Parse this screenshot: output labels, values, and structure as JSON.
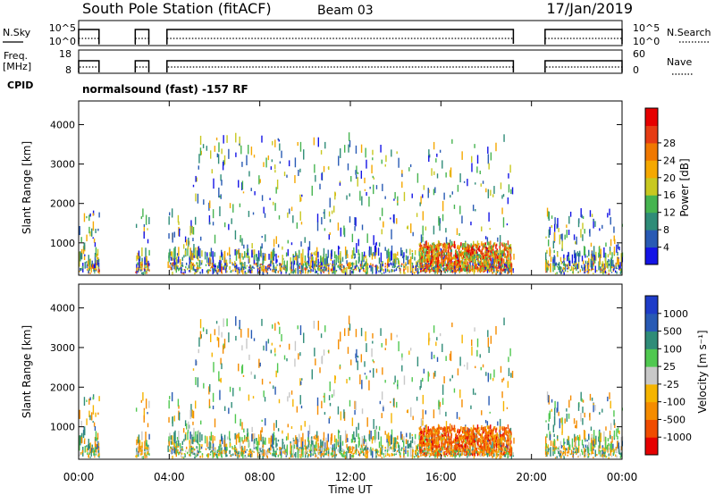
{
  "header": {
    "station": "South Pole Station (fitACF)",
    "beam": "Beam 03",
    "date": "17/Jan/2019"
  },
  "top_panels": {
    "nsky_label": "N.Sky",
    "nsky_ticks": [
      "10^5",
      "10^0"
    ],
    "nsearch_label": "N.Search",
    "nsearch_ticks": [
      "10^5",
      "10^0"
    ],
    "freq_label": "Freq.",
    "freq_unit": "[MHz]",
    "freq_ticks": [
      "18",
      "8"
    ],
    "nave_label": "Nave",
    "nave_ticks": [
      "60",
      "0"
    ],
    "cpid_label": "CPID",
    "cpid_text": "normalsound (fast) -157 RF"
  },
  "chart_data": [
    {
      "type": "heatmap",
      "name": "power",
      "ylabel": "Slant Range [km]",
      "yticks": [
        1000,
        2000,
        3000,
        4000
      ],
      "ylim": [
        180,
        4600
      ],
      "xlim": [
        0,
        24
      ],
      "colorbar_label": "Power [dB]",
      "colorbar_ticks": [
        "4",
        "8",
        "12",
        "16",
        "20",
        "24",
        "28"
      ],
      "colorbar_colors": [
        "#1414e6",
        "#285ab4",
        "#2f8c78",
        "#46b450",
        "#c8c820",
        "#f5a800",
        "#f07800",
        "#e63c14",
        "#e60000"
      ],
      "data_gaps_hours": [
        [
          0.9,
          2.5
        ],
        [
          3.1,
          3.9
        ],
        [
          19.2,
          20.6
        ]
      ]
    },
    {
      "type": "heatmap",
      "name": "velocity",
      "ylabel": "Slant Range [km]",
      "yticks": [
        1000,
        2000,
        3000,
        4000
      ],
      "ylim": [
        180,
        4600
      ],
      "xlim": [
        0,
        24
      ],
      "xticks": [
        "00:00",
        "04:00",
        "08:00",
        "12:00",
        "16:00",
        "20:00",
        "00:00"
      ],
      "xlabel": "Time UT",
      "colorbar_label": "Velocity [m s⁻¹]",
      "colorbar_ticks": [
        "-1000",
        "-500",
        "-100",
        "-25",
        "25",
        "100",
        "500",
        "1000"
      ],
      "colorbar_colors": [
        "#e60000",
        "#f04c00",
        "#f58c00",
        "#f5b400",
        "#c8c8c8",
        "#50c850",
        "#2f8c78",
        "#285ab4",
        "#1e3cc8"
      ],
      "data_gaps_hours": [
        [
          0.9,
          2.5
        ],
        [
          3.1,
          3.9
        ],
        [
          19.2,
          20.6
        ]
      ]
    }
  ]
}
